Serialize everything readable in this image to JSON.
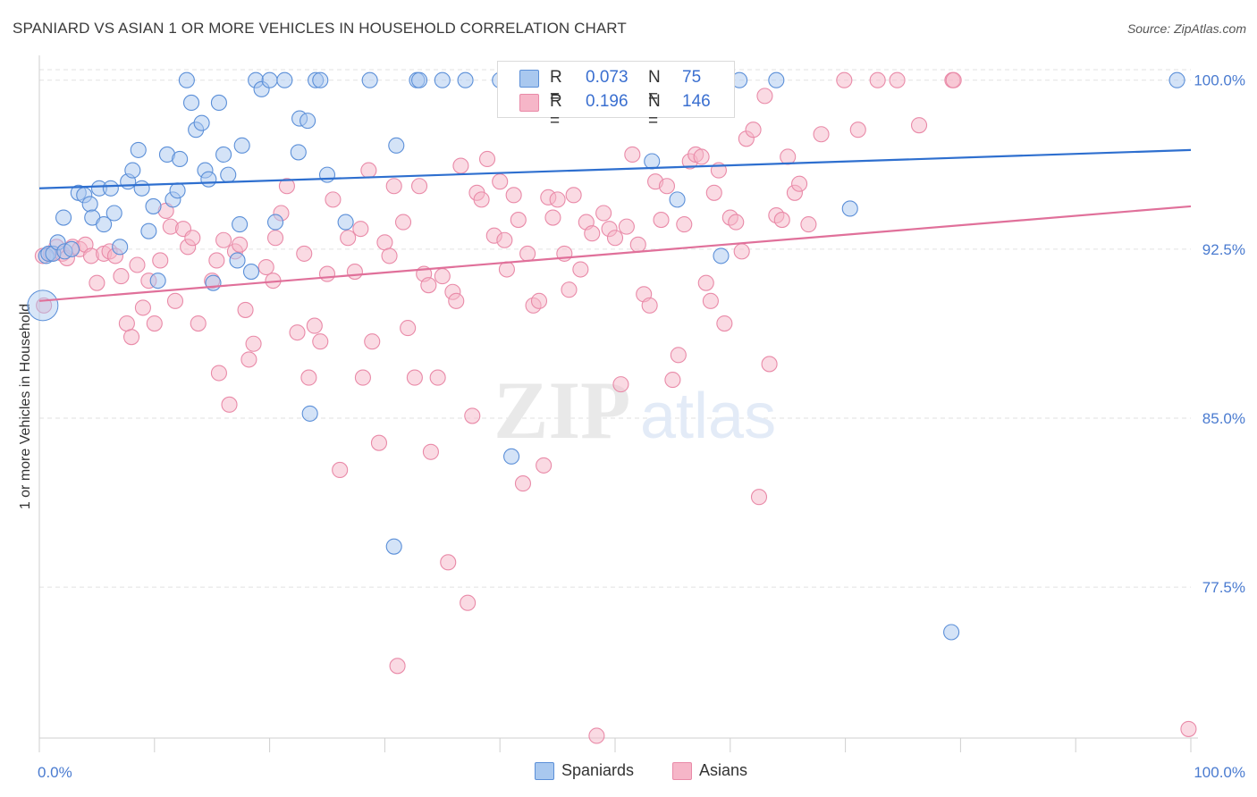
{
  "title": "SPANIARD VS ASIAN 1 OR MORE VEHICLES IN HOUSEHOLD CORRELATION CHART",
  "source": "Source: ZipAtlas.com",
  "watermark": {
    "zip": "ZIP",
    "atlas": "atlas"
  },
  "legend": {
    "spaniards": {
      "r_label": "R =",
      "r_value": "0.073",
      "n_label": "N =",
      "n_value": "75"
    },
    "asians": {
      "r_label": "R =",
      "r_value": "0.196",
      "n_label": "N =",
      "n_value": "146"
    }
  },
  "bottom_legend": {
    "spaniards": "Spaniards",
    "asians": "Asians"
  },
  "colors": {
    "spaniards_fill": "#a9c8ef",
    "spaniards_stroke": "#5b8fd8",
    "spaniards_line": "#2e6fcf",
    "asians_fill": "#f6b6c8",
    "asians_stroke": "#e98aa8",
    "asians_line": "#e0709a",
    "tick_text": "#4a7bd0",
    "grid": "#e2e2e2"
  },
  "chart_data": {
    "type": "scatter",
    "title": "SPANIARD VS ASIAN 1 OR MORE VEHICLES IN HOUSEHOLD CORRELATION CHART",
    "xlabel": "",
    "ylabel": "1 or more Vehicles in Household",
    "xlim": [
      0,
      100
    ],
    "ylim": [
      70.8,
      101.1
    ],
    "x_tick_labels": [
      "0.0%",
      "100.0%"
    ],
    "y_ticks": [
      100.0,
      92.5,
      85.0,
      77.5
    ],
    "y_tick_labels": [
      "100.0%",
      "92.5%",
      "85.0%",
      "77.5%"
    ],
    "grid": true,
    "legend_position": "top-center",
    "series": [
      {
        "name": "Spaniards",
        "r": 0.073,
        "n": 75,
        "trend": [
          [
            0,
            95.2
          ],
          [
            100,
            96.9
          ]
        ],
        "points": [
          [
            0.6,
            92.2
          ],
          [
            0.8,
            92.3
          ],
          [
            1.2,
            92.3
          ],
          [
            1.6,
            92.8
          ],
          [
            2.2,
            92.4
          ],
          [
            2.8,
            92.5
          ],
          [
            3.4,
            95.0
          ],
          [
            2.1,
            93.9
          ],
          [
            3.9,
            94.9
          ],
          [
            4.4,
            94.5
          ],
          [
            4.6,
            93.9
          ],
          [
            5.2,
            95.2
          ],
          [
            5.6,
            93.6
          ],
          [
            6.2,
            95.2
          ],
          [
            6.5,
            94.1
          ],
          [
            7.0,
            92.6
          ],
          [
            7.7,
            95.5
          ],
          [
            8.1,
            96.0
          ],
          [
            8.6,
            96.9
          ],
          [
            8.9,
            95.2
          ],
          [
            9.5,
            93.3
          ],
          [
            9.9,
            94.4
          ],
          [
            10.3,
            91.1
          ],
          [
            11.1,
            96.7
          ],
          [
            11.6,
            94.7
          ],
          [
            12.0,
            95.1
          ],
          [
            12.2,
            96.5
          ],
          [
            12.8,
            100.0
          ],
          [
            13.2,
            99.0
          ],
          [
            13.6,
            97.8
          ],
          [
            14.1,
            98.1
          ],
          [
            14.4,
            96.0
          ],
          [
            14.7,
            95.6
          ],
          [
            15.1,
            91.0
          ],
          [
            15.6,
            99.0
          ],
          [
            16.0,
            96.7
          ],
          [
            16.4,
            95.8
          ],
          [
            17.4,
            93.6
          ],
          [
            17.6,
            97.1
          ],
          [
            17.2,
            92.0
          ],
          [
            18.4,
            91.5
          ],
          [
            18.8,
            100.0
          ],
          [
            19.3,
            99.6
          ],
          [
            20.0,
            100.0
          ],
          [
            20.5,
            93.7
          ],
          [
            21.3,
            100.0
          ],
          [
            22.5,
            96.8
          ],
          [
            22.6,
            98.3
          ],
          [
            23.3,
            98.2
          ],
          [
            23.5,
            85.2
          ],
          [
            24.0,
            100.0
          ],
          [
            24.4,
            100.0
          ],
          [
            25.0,
            95.8
          ],
          [
            26.6,
            93.7
          ],
          [
            28.7,
            100.0
          ],
          [
            30.8,
            79.3
          ],
          [
            31.0,
            97.1
          ],
          [
            32.8,
            100.0
          ],
          [
            33.0,
            100.0
          ],
          [
            35.0,
            100.0
          ],
          [
            37.0,
            100.0
          ],
          [
            40.0,
            100.0
          ],
          [
            42.0,
            100.0
          ],
          [
            41.0,
            83.3
          ],
          [
            47.1,
            100.0
          ],
          [
            49.2,
            100.0
          ],
          [
            53.2,
            96.4
          ],
          [
            55.4,
            94.7
          ],
          [
            57.8,
            100.0
          ],
          [
            59.2,
            92.2
          ],
          [
            60.8,
            100.0
          ],
          [
            64.0,
            100.0
          ],
          [
            70.4,
            94.3
          ],
          [
            98.8,
            100.0
          ],
          [
            79.2,
            75.5
          ]
        ]
      },
      {
        "name": "Asians",
        "r": 0.196,
        "n": 146,
        "trend": [
          [
            0,
            90.2
          ],
          [
            100,
            94.4
          ]
        ],
        "points": [
          [
            0.3,
            92.2
          ],
          [
            0.4,
            90.0
          ],
          [
            1.0,
            92.3
          ],
          [
            1.5,
            92.6
          ],
          [
            2.0,
            92.3
          ],
          [
            2.4,
            92.1
          ],
          [
            2.9,
            92.6
          ],
          [
            3.5,
            92.5
          ],
          [
            4.0,
            92.7
          ],
          [
            4.5,
            92.2
          ],
          [
            5.0,
            91.0
          ],
          [
            5.6,
            92.3
          ],
          [
            6.1,
            92.4
          ],
          [
            6.6,
            92.2
          ],
          [
            7.1,
            91.3
          ],
          [
            7.6,
            89.2
          ],
          [
            8.0,
            88.6
          ],
          [
            8.5,
            91.8
          ],
          [
            9.0,
            89.9
          ],
          [
            9.5,
            91.1
          ],
          [
            10.0,
            89.2
          ],
          [
            10.5,
            92.0
          ],
          [
            11.0,
            94.2
          ],
          [
            11.4,
            93.5
          ],
          [
            11.8,
            90.2
          ],
          [
            12.5,
            93.4
          ],
          [
            12.9,
            92.6
          ],
          [
            13.3,
            93.0
          ],
          [
            13.8,
            89.2
          ],
          [
            15.0,
            91.1
          ],
          [
            15.4,
            92.0
          ],
          [
            15.6,
            87.0
          ],
          [
            16.0,
            92.9
          ],
          [
            16.5,
            85.6
          ],
          [
            17.0,
            92.4
          ],
          [
            17.4,
            92.7
          ],
          [
            17.9,
            89.8
          ],
          [
            18.2,
            87.6
          ],
          [
            18.6,
            88.3
          ],
          [
            19.7,
            91.7
          ],
          [
            20.3,
            91.1
          ],
          [
            20.5,
            93.0
          ],
          [
            21.0,
            94.1
          ],
          [
            21.5,
            95.3
          ],
          [
            22.4,
            88.8
          ],
          [
            23.0,
            92.3
          ],
          [
            23.4,
            86.8
          ],
          [
            23.9,
            89.1
          ],
          [
            24.4,
            88.4
          ],
          [
            25.0,
            91.4
          ],
          [
            25.5,
            94.7
          ],
          [
            26.1,
            82.7
          ],
          [
            26.8,
            93.0
          ],
          [
            27.4,
            91.5
          ],
          [
            27.9,
            93.4
          ],
          [
            28.1,
            86.8
          ],
          [
            28.6,
            96.0
          ],
          [
            28.9,
            88.4
          ],
          [
            29.5,
            83.9
          ],
          [
            30.0,
            92.8
          ],
          [
            30.4,
            92.2
          ],
          [
            30.8,
            95.3
          ],
          [
            31.1,
            74.0
          ],
          [
            31.6,
            93.7
          ],
          [
            32.0,
            89.0
          ],
          [
            32.6,
            86.8
          ],
          [
            33.0,
            95.3
          ],
          [
            33.4,
            91.4
          ],
          [
            33.8,
            90.9
          ],
          [
            34.0,
            83.5
          ],
          [
            34.6,
            86.8
          ],
          [
            35.0,
            91.3
          ],
          [
            35.5,
            78.6
          ],
          [
            35.9,
            90.6
          ],
          [
            36.2,
            90.2
          ],
          [
            36.6,
            96.2
          ],
          [
            37.2,
            76.8
          ],
          [
            37.6,
            85.1
          ],
          [
            38.0,
            95.0
          ],
          [
            38.4,
            94.7
          ],
          [
            38.9,
            96.5
          ],
          [
            39.5,
            93.1
          ],
          [
            40.0,
            95.5
          ],
          [
            40.4,
            92.9
          ],
          [
            40.6,
            91.6
          ],
          [
            41.2,
            94.9
          ],
          [
            41.6,
            93.8
          ],
          [
            42.0,
            82.1
          ],
          [
            42.4,
            92.3
          ],
          [
            42.9,
            90.0
          ],
          [
            43.4,
            90.2
          ],
          [
            43.8,
            82.9
          ],
          [
            44.2,
            94.8
          ],
          [
            44.6,
            93.9
          ],
          [
            45.0,
            94.7
          ],
          [
            45.6,
            92.3
          ],
          [
            46.0,
            90.7
          ],
          [
            46.4,
            94.9
          ],
          [
            47.0,
            91.6
          ],
          [
            47.5,
            93.7
          ],
          [
            48.0,
            93.2
          ],
          [
            48.4,
            70.9
          ],
          [
            49.0,
            94.1
          ],
          [
            49.5,
            93.4
          ],
          [
            50.0,
            93.0
          ],
          [
            50.5,
            86.5
          ],
          [
            51.0,
            93.5
          ],
          [
            51.5,
            96.7
          ],
          [
            52.0,
            92.7
          ],
          [
            52.5,
            90.5
          ],
          [
            53.0,
            90.0
          ],
          [
            53.5,
            95.5
          ],
          [
            54.0,
            93.8
          ],
          [
            54.5,
            95.3
          ],
          [
            55.0,
            86.7
          ],
          [
            55.5,
            87.8
          ],
          [
            56.0,
            93.6
          ],
          [
            56.5,
            96.4
          ],
          [
            57.0,
            96.7
          ],
          [
            57.5,
            96.6
          ],
          [
            57.9,
            91.0
          ],
          [
            58.3,
            90.2
          ],
          [
            58.6,
            95.0
          ],
          [
            59.0,
            96.0
          ],
          [
            59.5,
            89.2
          ],
          [
            60.0,
            93.9
          ],
          [
            60.5,
            93.7
          ],
          [
            61.0,
            92.4
          ],
          [
            61.4,
            97.4
          ],
          [
            62.0,
            97.8
          ],
          [
            63.4,
            87.4
          ],
          [
            64.0,
            94.0
          ],
          [
            64.5,
            93.8
          ],
          [
            65.0,
            96.6
          ],
          [
            65.6,
            95.0
          ],
          [
            66.0,
            95.4
          ],
          [
            66.8,
            93.6
          ],
          [
            67.9,
            97.6
          ],
          [
            71.1,
            97.8
          ],
          [
            69.9,
            100.0
          ],
          [
            72.8,
            100.0
          ],
          [
            74.5,
            100.0
          ],
          [
            79.3,
            100.0
          ],
          [
            76.4,
            98.0
          ],
          [
            79.4,
            100.0
          ],
          [
            62.5,
            81.5
          ],
          [
            63.0,
            99.3
          ],
          [
            99.8,
            71.2
          ]
        ]
      }
    ]
  }
}
